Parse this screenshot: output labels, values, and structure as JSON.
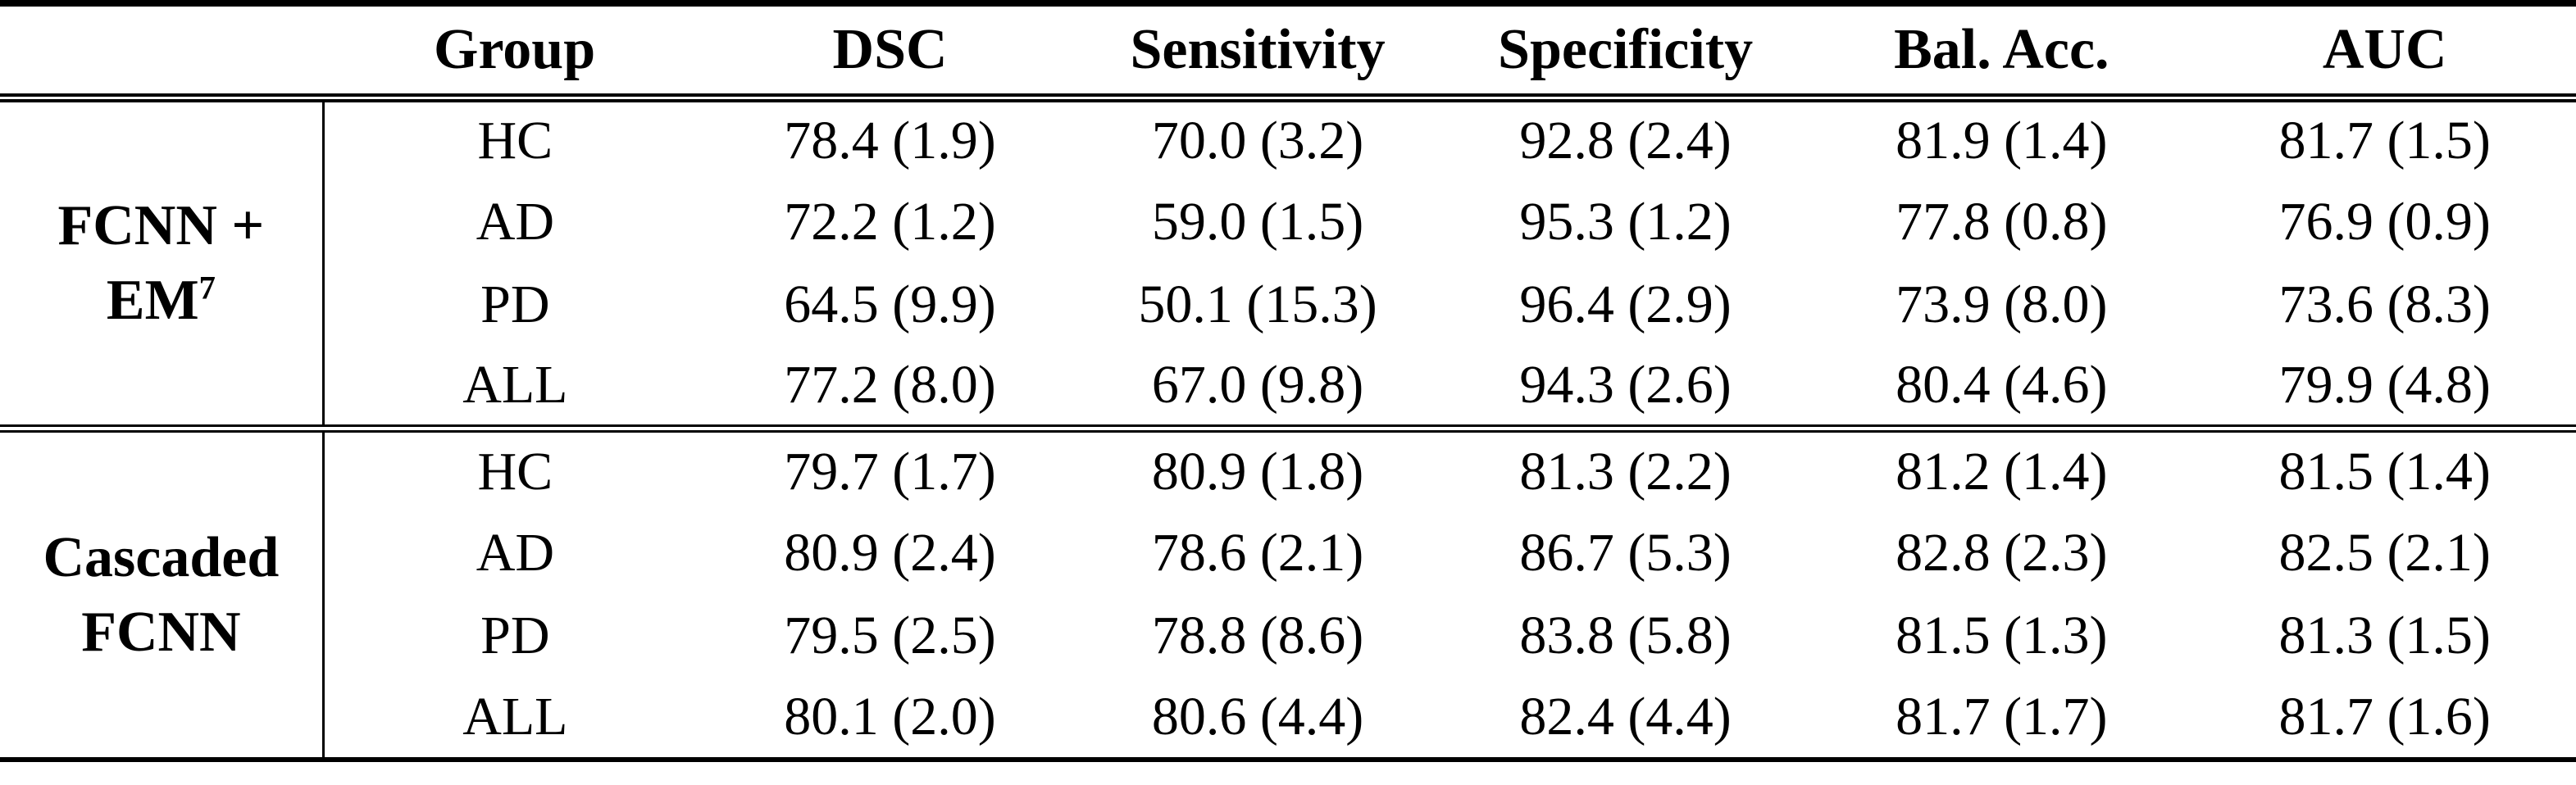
{
  "colors": {
    "background": "#ffffff",
    "text": "#000000",
    "rule": "#000000"
  },
  "table": {
    "columns": [
      "",
      "Group",
      "DSC",
      "Sensitivity",
      "Specificity",
      "Bal. Acc.",
      "AUC"
    ],
    "groups": [
      {
        "method_line1": "FCNN +",
        "method_line2": "EM",
        "method_sup": "7",
        "rows": [
          {
            "group": "HC",
            "dsc": "78.4 (1.9)",
            "sensitivity": "70.0 (3.2)",
            "specificity": "92.8 (2.4)",
            "bal_acc": "81.9 (1.4)",
            "auc": "81.7 (1.5)"
          },
          {
            "group": "AD",
            "dsc": "72.2 (1.2)",
            "sensitivity": "59.0 (1.5)",
            "specificity": "95.3 (1.2)",
            "bal_acc": "77.8 (0.8)",
            "auc": "76.9 (0.9)"
          },
          {
            "group": "PD",
            "dsc": "64.5 (9.9)",
            "sensitivity": "50.1 (15.3)",
            "specificity": "96.4 (2.9)",
            "bal_acc": "73.9 (8.0)",
            "auc": "73.6 (8.3)"
          },
          {
            "group": "ALL",
            "dsc": "77.2 (8.0)",
            "sensitivity": "67.0 (9.8)",
            "specificity": "94.3 (2.6)",
            "bal_acc": "80.4 (4.6)",
            "auc": "79.9 (4.8)"
          }
        ]
      },
      {
        "method_line1": "Cascaded",
        "method_line2": "FCNN",
        "rows": [
          {
            "group": "HC",
            "dsc": "79.7 (1.7)",
            "sensitivity": "80.9 (1.8)",
            "specificity": "81.3 (2.2)",
            "bal_acc": "81.2 (1.4)",
            "auc": "81.5 (1.4)"
          },
          {
            "group": "AD",
            "dsc": "80.9 (2.4)",
            "sensitivity": "78.6 (2.1)",
            "specificity": "86.7 (5.3)",
            "bal_acc": "82.8 (2.3)",
            "auc": "82.5 (2.1)"
          },
          {
            "group": "PD",
            "dsc": "79.5 (2.5)",
            "sensitivity": "78.8 (8.6)",
            "specificity": "83.8 (5.8)",
            "bal_acc": "81.5 (1.3)",
            "auc": "81.3 (1.5)"
          },
          {
            "group": "ALL",
            "dsc": "80.1 (2.0)",
            "sensitivity": "80.6 (4.4)",
            "specificity": "82.4 (4.4)",
            "bal_acc": "81.7 (1.7)",
            "auc": "81.7 (1.6)"
          }
        ]
      }
    ]
  }
}
